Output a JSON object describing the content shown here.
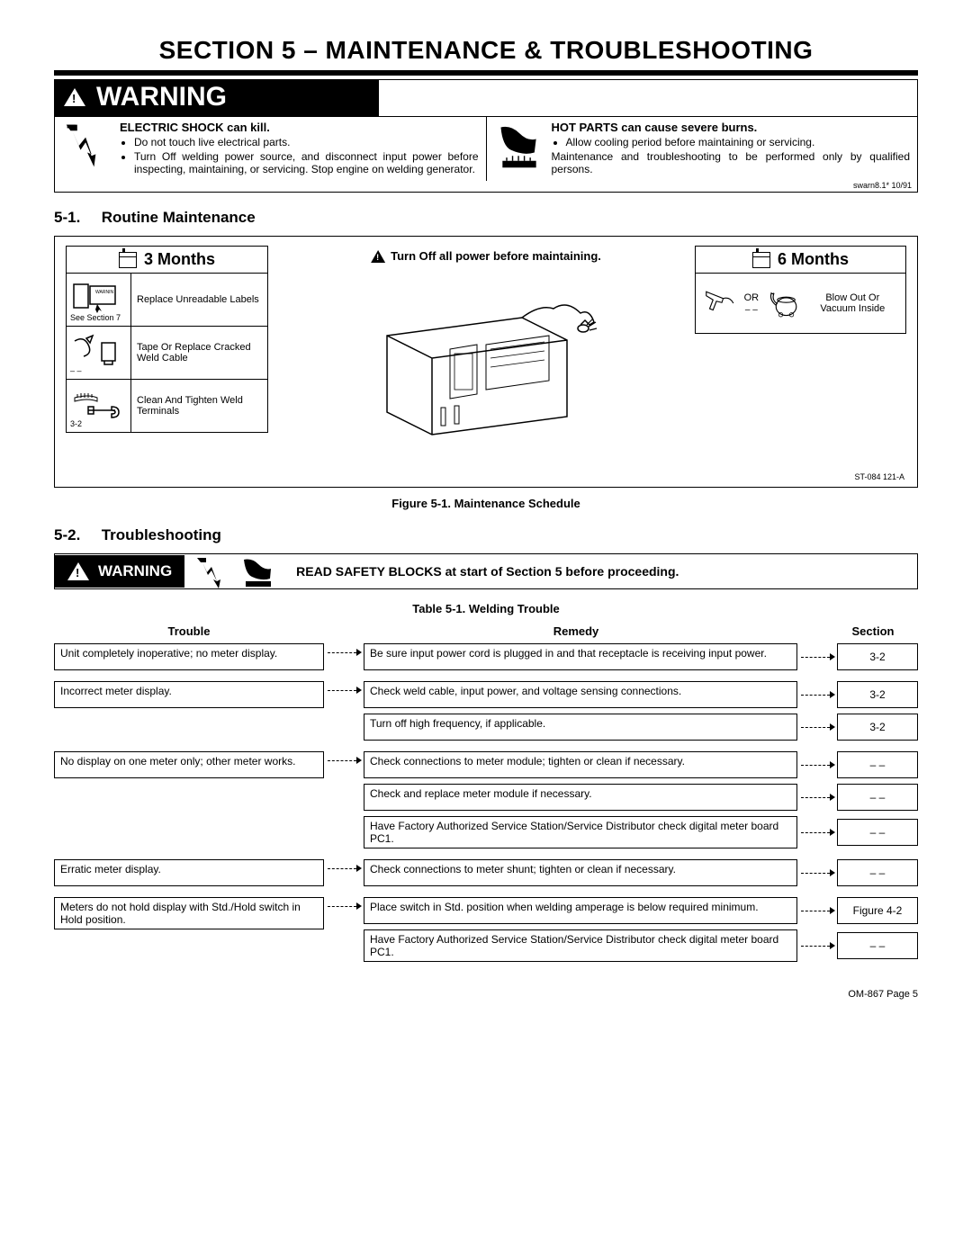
{
  "title": "SECTION 5 – MAINTENANCE & TROUBLESHOOTING",
  "warning_label": "WARNING",
  "swarn_ref": "swarn8.1* 10/91",
  "shock": {
    "heading": "ELECTRIC SHOCK can kill.",
    "b1": "Do not touch live electrical parts.",
    "b2": "Turn Off welding power source, and disconnect input power before inspecting, maintaining, or servicing. Stop engine on welding generator."
  },
  "hot": {
    "heading": "HOT PARTS can cause severe burns.",
    "b1": "Allow cooling period before maintaining or servicing.",
    "note": "Maintenance and troubleshooting to be performed only by qualified persons."
  },
  "sec51_num": "5-1.",
  "sec51_title": "Routine Maintenance",
  "maint_note": "Turn Off all power before maintaining.",
  "months3_label": "3 Months",
  "months6_label": "6 Months",
  "m3": {
    "r1_ref": "See Section 7",
    "r1_text": "Replace Unreadable Labels",
    "r2_ref": "– –",
    "r2_text": "Tape Or Replace Cracked Weld Cable",
    "r3_ref": "3-2",
    "r3_text": "Clean And Tighten Weld Terminals"
  },
  "m6": {
    "or": "OR",
    "ref": "– –",
    "text": "Blow Out Or Vacuum Inside"
  },
  "fig_ref": "ST-084 121-A",
  "fig_label": "Figure 5-1. Maintenance Schedule",
  "sec52_num": "5-2.",
  "sec52_title": "Troubleshooting",
  "read_safety": "READ SAFETY BLOCKS at start of Section 5 before proceeding.",
  "tbl_label": "Table 5-1. Welding Trouble",
  "th_trouble": "Trouble",
  "th_remedy": "Remedy",
  "th_section": "Section",
  "rows": [
    {
      "trouble": "Unit completely inoperative; no meter display.",
      "remedies": [
        {
          "text": "Be sure input power cord is plugged in and that receptacle is receiving input power.",
          "section": "3-2"
        }
      ]
    },
    {
      "trouble": "Incorrect meter display.",
      "remedies": [
        {
          "text": "Check weld cable, input power, and voltage sensing connections.",
          "section": "3-2"
        },
        {
          "text": "Turn off high frequency, if applicable.",
          "section": "3-2"
        }
      ]
    },
    {
      "trouble": "No display on one meter only; other meter works.",
      "remedies": [
        {
          "text": "Check connections to meter module; tighten or clean if necessary.",
          "section": "– –"
        },
        {
          "text": "Check and replace meter module if necessary.",
          "section": "– –"
        },
        {
          "text": "Have Factory Authorized Service Station/Service Distributor check digital meter board PC1.",
          "section": "– –"
        }
      ]
    },
    {
      "trouble": "Erratic meter display.",
      "remedies": [
        {
          "text": "Check connections to meter shunt; tighten or clean if necessary.",
          "section": "– –"
        }
      ]
    },
    {
      "trouble": "Meters do not hold display with Std./Hold switch in Hold position.",
      "remedies": [
        {
          "text": "Place switch in Std. position when welding amperage is below required minimum.",
          "section": "Figure 4-2"
        },
        {
          "text": "Have Factory Authorized Service Station/Service Distributor check digital meter board PC1.",
          "section": "– –"
        }
      ]
    }
  ],
  "footer": "OM-867 Page 5"
}
